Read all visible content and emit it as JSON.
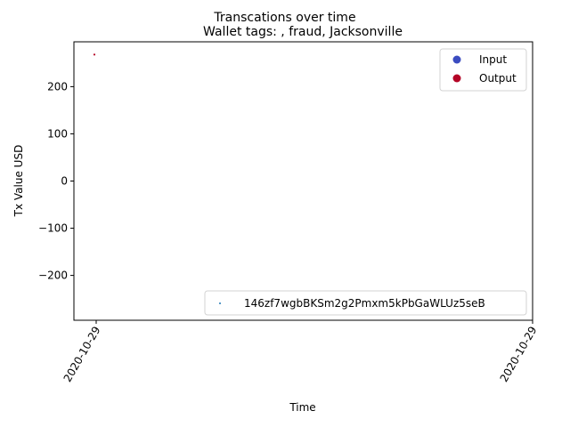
{
  "chart_data": {
    "type": "scatter",
    "suptitle": "Transcations over time",
    "title": "Wallet tags: , fraud, Jacksonville",
    "xlabel": "Time",
    "ylabel": "Tx Value USD",
    "x_ticks": [
      "2020-10-29",
      "2020-10-29"
    ],
    "ylim": [
      -295,
      295
    ],
    "y_ticks": [
      200,
      100,
      0,
      -100,
      -200
    ],
    "y_tick_labels": [
      "200",
      "100",
      "0",
      "−100",
      "−200"
    ],
    "grid": false,
    "legend_markers": {
      "location": "upper-right",
      "entries": [
        {
          "label": "Input",
          "color": "#3b4cc0"
        },
        {
          "label": "Output",
          "color": "#b40426"
        }
      ]
    },
    "legend_series": {
      "location": "lower-right",
      "entries": [
        {
          "label": "146zf7wgbBKSm2g2Pmxm5kPbGaWLUz5seB",
          "color": "#1f77b4"
        }
      ]
    },
    "series": [
      {
        "kind": "Output",
        "color": "#b40426",
        "points": [
          {
            "x": "2020-10-29",
            "y": 268
          }
        ]
      }
    ]
  }
}
